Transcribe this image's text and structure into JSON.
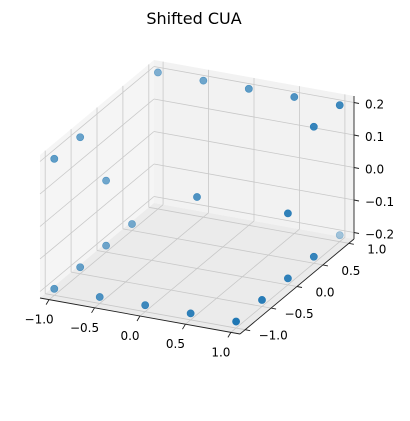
{
  "chart_data": {
    "type": "scatter",
    "projection": "3d",
    "title": "Shifted CUA",
    "xlabel": "",
    "ylabel": "",
    "zlabel": "",
    "xlim": [
      -1.1,
      1.1
    ],
    "ylim": [
      -1.1,
      1.1
    ],
    "zlim": [
      -0.22,
      0.22
    ],
    "x_ticks": [
      "−1.0",
      "−0.5",
      "0.0",
      "0.5",
      "1.0"
    ],
    "y_ticks": [
      "−1.0",
      "−0.5",
      "0.0",
      "0.5",
      "1.0"
    ],
    "z_ticks": [
      "−0.2",
      "−0.1",
      "0.0",
      "0.1",
      "0.2"
    ],
    "grid": true,
    "marker_color": "#1f77b4",
    "points": [
      {
        "x": -1.0,
        "y": -1.0,
        "z": -0.2
      },
      {
        "x": -0.5,
        "y": -1.0,
        "z": -0.2
      },
      {
        "x": 0.0,
        "y": -1.0,
        "z": -0.2
      },
      {
        "x": 0.5,
        "y": -1.0,
        "z": -0.2
      },
      {
        "x": 1.0,
        "y": -1.0,
        "z": -0.2
      },
      {
        "x": 1.0,
        "y": -0.5,
        "z": -0.2
      },
      {
        "x": 1.0,
        "y": 0.0,
        "z": -0.2
      },
      {
        "x": 1.0,
        "y": 0.5,
        "z": -0.2
      },
      {
        "x": 1.0,
        "y": 1.0,
        "z": -0.2
      },
      {
        "x": -1.0,
        "y": -0.5,
        "z": -0.2
      },
      {
        "x": -1.0,
        "y": 0.0,
        "z": -0.2
      },
      {
        "x": -1.0,
        "y": 0.5,
        "z": -0.2
      },
      {
        "x": -1.0,
        "y": 1.0,
        "z": 0.2
      },
      {
        "x": -0.5,
        "y": 1.0,
        "z": 0.2
      },
      {
        "x": 0.0,
        "y": 1.0,
        "z": 0.2
      },
      {
        "x": 0.5,
        "y": 1.0,
        "z": 0.2
      },
      {
        "x": 1.0,
        "y": 1.0,
        "z": 0.2
      },
      {
        "x": 1.0,
        "y": 0.5,
        "z": 0.2
      },
      {
        "x": -1.0,
        "y": -1.0,
        "z": 0.2
      },
      {
        "x": -1.0,
        "y": -0.5,
        "z": 0.2
      },
      {
        "x": -1.0,
        "y": 0.0,
        "z": 0.0
      },
      {
        "x": 0.0,
        "y": 0.0,
        "z": 0.0
      },
      {
        "x": 1.0,
        "y": 0.0,
        "z": 0.0
      }
    ]
  }
}
